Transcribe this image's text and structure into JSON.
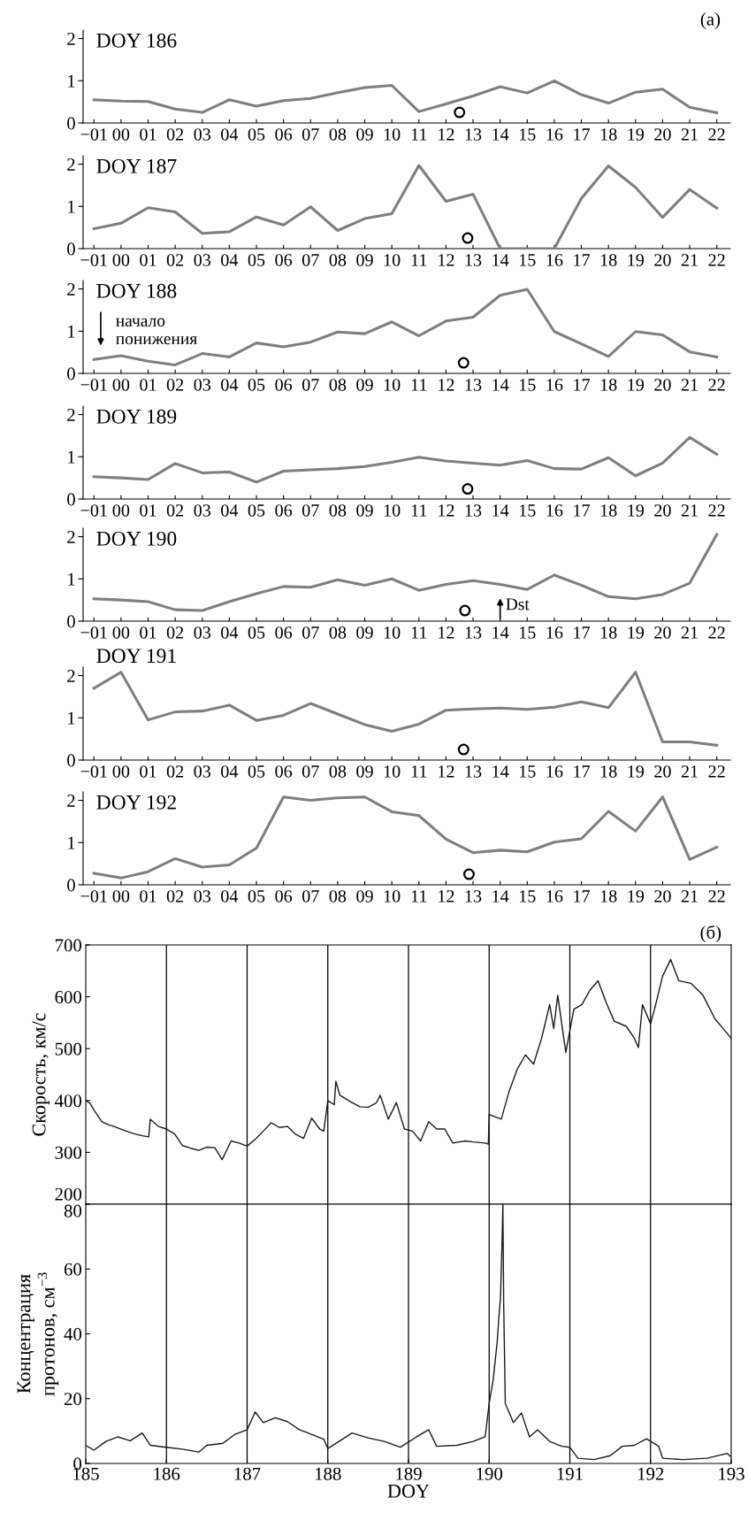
{
  "chart_data": [
    {
      "type": "line",
      "title": "DOY 186",
      "x": [
        -1,
        0,
        1,
        2,
        3,
        4,
        5,
        6,
        7,
        8,
        9,
        10,
        11,
        12,
        13,
        14,
        15,
        16,
        17,
        18,
        19,
        20,
        21,
        22
      ],
      "xlim": [
        -1.4,
        22.5
      ],
      "xticks": [
        {
          "value": -1,
          "label": "−01"
        },
        {
          "value": 0,
          "label": "00"
        },
        {
          "value": 1,
          "label": "01"
        },
        {
          "value": 2,
          "label": "02"
        },
        {
          "value": 3,
          "label": "03"
        },
        {
          "value": 4,
          "label": "04"
        },
        {
          "value": 5,
          "label": "05"
        },
        {
          "value": 6,
          "label": "06"
        },
        {
          "value": 7,
          "label": "07"
        },
        {
          "value": 8,
          "label": "08"
        },
        {
          "value": 9,
          "label": "09"
        },
        10,
        11,
        12,
        13,
        14,
        15,
        16,
        17,
        18,
        19,
        20,
        21,
        22
      ],
      "ylim": [
        0,
        2.2
      ],
      "yticks": [
        0,
        1,
        2
      ],
      "annotations": [
        "(a)"
      ],
      "series": [
        {
          "color": "#7f7f7f",
          "values": [
            0.55,
            0.52,
            0.51,
            0.33,
            0.25,
            0.55,
            0.4,
            0.53,
            0.58,
            0.72,
            0.84,
            0.89,
            0.27,
            0.45,
            0.64,
            0.86,
            0.71,
            1.0,
            0.67,
            0.47,
            0.73,
            0.8,
            0.37,
            0.24
          ]
        },
        {
          "type": "scatter",
          "x": [
            12.5
          ],
          "values": [
            0.25
          ],
          "color": "#000000",
          "marker": "circle"
        }
      ]
    },
    {
      "type": "line",
      "title": "DOY 187",
      "x": [
        -1,
        0,
        1,
        2,
        3,
        4,
        5,
        6,
        7,
        8,
        9,
        10,
        11,
        12,
        13,
        14,
        15,
        16,
        17,
        18,
        19,
        20,
        21,
        22
      ],
      "xlim": [
        -1.4,
        22.5
      ],
      "xticks": [
        {
          "value": -1,
          "label": "−01"
        },
        {
          "value": 0,
          "label": "00"
        },
        {
          "value": 1,
          "label": "01"
        },
        {
          "value": 2,
          "label": "02"
        },
        {
          "value": 3,
          "label": "03"
        },
        {
          "value": 4,
          "label": "04"
        },
        {
          "value": 5,
          "label": "05"
        },
        {
          "value": 6,
          "label": "06"
        },
        {
          "value": 7,
          "label": "07"
        },
        {
          "value": 8,
          "label": "08"
        },
        {
          "value": 9,
          "label": "09"
        },
        10,
        11,
        12,
        13,
        14,
        15,
        16,
        17,
        18,
        19,
        20,
        21,
        22
      ],
      "ylim": [
        0,
        2.2
      ],
      "yticks": [
        0,
        1,
        2
      ],
      "series": [
        {
          "color": "#7f7f7f",
          "values": [
            0.47,
            0.6,
            0.97,
            0.87,
            0.36,
            0.4,
            0.75,
            0.56,
            0.99,
            0.43,
            0.71,
            0.83,
            1.97,
            1.12,
            1.29,
            0,
            0,
            0,
            1.19,
            1.96,
            1.45,
            0.74,
            1.4,
            0.96
          ]
        },
        {
          "type": "scatter",
          "x": [
            12.8
          ],
          "values": [
            0.25
          ],
          "color": "#000000",
          "marker": "circle"
        }
      ]
    },
    {
      "type": "line",
      "title": "DOY 188",
      "x": [
        -1,
        0,
        1,
        2,
        3,
        4,
        5,
        6,
        7,
        8,
        9,
        10,
        11,
        12,
        13,
        14,
        15,
        16,
        17,
        18,
        19,
        20,
        21,
        22
      ],
      "xlim": [
        -1.4,
        22.5
      ],
      "xticks": [
        {
          "value": -1,
          "label": "−01"
        },
        {
          "value": 0,
          "label": "00"
        },
        {
          "value": 1,
          "label": "01"
        },
        {
          "value": 2,
          "label": "02"
        },
        {
          "value": 3,
          "label": "03"
        },
        {
          "value": 4,
          "label": "04"
        },
        {
          "value": 5,
          "label": "05"
        },
        {
          "value": 6,
          "label": "06"
        },
        {
          "value": 7,
          "label": "07"
        },
        {
          "value": 8,
          "label": "08"
        },
        {
          "value": 9,
          "label": "09"
        },
        10,
        11,
        12,
        13,
        14,
        15,
        16,
        17,
        18,
        19,
        20,
        21,
        22
      ],
      "ylim": [
        0,
        2.2
      ],
      "yticks": [
        0,
        1,
        2
      ],
      "annotations": [
        {
          "text": "начало\nпонижения",
          "x": -1,
          "y": 0.33
        }
      ],
      "series": [
        {
          "color": "#7f7f7f",
          "values": [
            0.33,
            0.42,
            0.29,
            0.2,
            0.47,
            0.39,
            0.72,
            0.63,
            0.74,
            0.98,
            0.94,
            1.22,
            0.89,
            1.24,
            1.33,
            1.85,
            1.99,
            0.99,
            0.7,
            0.4,
            0.99,
            0.91,
            0.51,
            0.39
          ]
        },
        {
          "type": "scatter",
          "x": [
            12.65
          ],
          "values": [
            0.25
          ],
          "color": "#000000",
          "marker": "circle"
        }
      ]
    },
    {
      "type": "line",
      "title": "DOY 189",
      "x": [
        -1,
        0,
        1,
        2,
        3,
        4,
        5,
        6,
        7,
        8,
        9,
        10,
        11,
        12,
        13,
        14,
        15,
        16,
        17,
        18,
        19,
        20,
        21,
        22
      ],
      "xlim": [
        -1.4,
        22.5
      ],
      "xticks": [
        {
          "value": -1,
          "label": "−01"
        },
        {
          "value": 0,
          "label": "00"
        },
        {
          "value": 1,
          "label": "01"
        },
        {
          "value": 2,
          "label": "02"
        },
        {
          "value": 3,
          "label": "03"
        },
        {
          "value": 4,
          "label": "04"
        },
        {
          "value": 5,
          "label": "05"
        },
        {
          "value": 6,
          "label": "06"
        },
        {
          "value": 7,
          "label": "07"
        },
        {
          "value": 8,
          "label": "08"
        },
        {
          "value": 9,
          "label": "09"
        },
        10,
        11,
        12,
        13,
        14,
        15,
        16,
        17,
        18,
        19,
        20,
        21,
        22
      ],
      "ylim": [
        0,
        2.2
      ],
      "yticks": [
        0,
        1,
        2
      ],
      "series": [
        {
          "color": "#7f7f7f",
          "values": [
            0.53,
            0.5,
            0.46,
            0.84,
            0.62,
            0.64,
            0.4,
            0.66,
            0.69,
            0.72,
            0.77,
            0.87,
            0.99,
            0.9,
            0.85,
            0.8,
            0.91,
            0.72,
            0.71,
            0.98,
            0.55,
            0.85,
            1.46,
            1.06
          ]
        },
        {
          "type": "scatter",
          "x": [
            12.8
          ],
          "values": [
            0.24
          ],
          "color": "#000000",
          "marker": "circle"
        }
      ]
    },
    {
      "type": "line",
      "title": "DOY 190",
      "x": [
        -1,
        0,
        1,
        2,
        3,
        4,
        5,
        6,
        7,
        8,
        9,
        10,
        11,
        12,
        13,
        14,
        15,
        16,
        17,
        18,
        19,
        20,
        21,
        22
      ],
      "xlim": [
        -1.4,
        22.5
      ],
      "xticks": [
        {
          "value": -1,
          "label": "−01"
        },
        {
          "value": 0,
          "label": "00"
        },
        {
          "value": 1,
          "label": "01"
        },
        {
          "value": 2,
          "label": "02"
        },
        {
          "value": 3,
          "label": "03"
        },
        {
          "value": 4,
          "label": "04"
        },
        {
          "value": 5,
          "label": "05"
        },
        {
          "value": 6,
          "label": "06"
        },
        {
          "value": 7,
          "label": "07"
        },
        {
          "value": 8,
          "label": "08"
        },
        {
          "value": 9,
          "label": "09"
        },
        10,
        11,
        12,
        13,
        14,
        15,
        16,
        17,
        18,
        19,
        20,
        21,
        22
      ],
      "ylim": [
        0,
        2.2
      ],
      "yticks": [
        0,
        1,
        2
      ],
      "annotations": [
        {
          "text": "Dst",
          "x": 14,
          "y": 0.87
        }
      ],
      "series": [
        {
          "color": "#7f7f7f",
          "values": [
            0.53,
            0.5,
            0.46,
            0.27,
            0.25,
            0.46,
            0.65,
            0.82,
            0.8,
            0.98,
            0.85,
            1.0,
            0.73,
            0.87,
            0.96,
            0.87,
            0.75,
            1.09,
            0.85,
            0.58,
            0.53,
            0.63,
            0.9,
            2.05
          ]
        },
        {
          "type": "scatter",
          "x": [
            12.7
          ],
          "values": [
            0.25
          ],
          "color": "#000000",
          "marker": "circle"
        }
      ]
    },
    {
      "type": "line",
      "title": "DOY 191",
      "x": [
        -1,
        0,
        1,
        2,
        3,
        4,
        5,
        6,
        7,
        8,
        9,
        10,
        11,
        12,
        13,
        14,
        15,
        16,
        17,
        18,
        19,
        20,
        21,
        22
      ],
      "xlim": [
        -1.4,
        22.5
      ],
      "xticks": [
        {
          "value": -1,
          "label": "−01"
        },
        {
          "value": 0,
          "label": "00"
        },
        {
          "value": 1,
          "label": "01"
        },
        {
          "value": 2,
          "label": "02"
        },
        {
          "value": 3,
          "label": "03"
        },
        {
          "value": 4,
          "label": "04"
        },
        {
          "value": 5,
          "label": "05"
        },
        {
          "value": 6,
          "label": "06"
        },
        {
          "value": 7,
          "label": "07"
        },
        {
          "value": 8,
          "label": "08"
        },
        {
          "value": 9,
          "label": "09"
        },
        10,
        11,
        12,
        13,
        14,
        15,
        16,
        17,
        18,
        19,
        20,
        21,
        22
      ],
      "ylim": [
        0,
        2.2
      ],
      "yticks": [
        0,
        1,
        2
      ],
      "series": [
        {
          "color": "#7f7f7f",
          "values": [
            1.7,
            2.08,
            0.95,
            1.14,
            1.16,
            1.3,
            0.94,
            1.06,
            1.34,
            1.09,
            0.84,
            0.68,
            0.85,
            1.18,
            1.21,
            1.23,
            1.2,
            1.25,
            1.38,
            1.24,
            2.08,
            0.43,
            0.43,
            0.35
          ]
        },
        {
          "type": "scatter",
          "x": [
            12.65
          ],
          "values": [
            0.25
          ],
          "color": "#000000",
          "marker": "circle"
        }
      ]
    },
    {
      "type": "line",
      "title": "DOY 192",
      "x": [
        -1,
        0,
        1,
        2,
        3,
        4,
        5,
        6,
        7,
        8,
        9,
        10,
        11,
        12,
        13,
        14,
        15,
        16,
        17,
        18,
        19,
        20,
        21,
        22
      ],
      "xlim": [
        -1.4,
        22.5
      ],
      "xticks": [
        {
          "value": -1,
          "label": "−01"
        },
        {
          "value": 0,
          "label": "00"
        },
        {
          "value": 1,
          "label": "01"
        },
        {
          "value": 2,
          "label": "02"
        },
        {
          "value": 3,
          "label": "03"
        },
        {
          "value": 4,
          "label": "04"
        },
        {
          "value": 5,
          "label": "05"
        },
        {
          "value": 6,
          "label": "06"
        },
        {
          "value": 7,
          "label": "07"
        },
        {
          "value": 8,
          "label": "08"
        },
        {
          "value": 9,
          "label": "09"
        },
        10,
        11,
        12,
        13,
        14,
        15,
        16,
        17,
        18,
        19,
        20,
        21,
        22
      ],
      "ylim": [
        0,
        2.2
      ],
      "yticks": [
        0,
        1,
        2
      ],
      "series": [
        {
          "color": "#7f7f7f",
          "values": [
            0.27,
            0.16,
            0.31,
            0.62,
            0.42,
            0.47,
            0.87,
            2.08,
            2.0,
            2.06,
            2.08,
            1.73,
            1.64,
            1.08,
            0.76,
            0.82,
            0.78,
            1.01,
            1.09,
            1.74,
            1.27,
            2.08,
            0.6,
            0.89
          ]
        },
        {
          "type": "scatter",
          "x": [
            12.85
          ],
          "values": [
            0.25
          ],
          "color": "#000000",
          "marker": "circle"
        }
      ]
    },
    {
      "type": "line",
      "ylabel": "Скорость, км/с",
      "xlim": [
        185,
        193
      ],
      "ylim": [
        200,
        700
      ],
      "yticks": [
        200,
        300,
        400,
        500,
        600,
        700
      ],
      "tick_labels": "y",
      "annotations": [
        "(б)"
      ],
      "ref_lines": [
        {
          "axis": "x",
          "value": 186,
          "color": "#000000"
        },
        {
          "axis": "x",
          "value": 187,
          "color": "#000000"
        },
        {
          "axis": "x",
          "value": 188,
          "color": "#000000"
        },
        {
          "axis": "x",
          "value": 189,
          "color": "#000000"
        },
        {
          "axis": "x",
          "value": 190,
          "color": "#000000"
        },
        {
          "axis": "x",
          "value": 191,
          "color": "#000000"
        },
        {
          "axis": "x",
          "value": 192,
          "color": "#000000"
        }
      ],
      "series": [
        {
          "color": "#1a1a1a",
          "x": [
            185.0,
            185.05,
            185.1,
            185.2,
            185.3,
            185.35,
            185.5,
            185.6,
            185.7,
            185.78,
            185.8,
            185.9,
            186.0,
            186.1,
            186.2,
            186.3,
            186.4,
            186.5,
            186.6,
            186.69,
            186.75,
            186.8,
            186.9,
            187.0,
            187.1,
            187.2,
            187.3,
            187.4,
            187.5,
            187.6,
            187.7,
            187.8,
            187.9,
            187.95,
            188.0,
            188.08,
            188.1,
            188.15,
            188.3,
            188.4,
            188.5,
            188.6,
            188.65,
            188.75,
            188.85,
            188.95,
            189.05,
            189.15,
            189.25,
            189.35,
            189.45,
            189.55,
            189.7,
            189.8,
            189.95,
            189.99,
            190.0,
            190.15,
            190.25,
            190.35,
            190.45,
            190.55,
            190.65,
            190.75,
            190.8,
            190.85,
            190.95,
            191.05,
            191.15,
            191.25,
            191.35,
            191.45,
            191.55,
            191.7,
            191.8,
            191.85,
            191.9,
            192.0,
            192.05,
            192.15,
            192.25,
            192.35,
            192.5,
            192.65,
            192.8,
            192.9,
            193.0
          ],
          "values": [
            400,
            395,
            382,
            359,
            352,
            350,
            341,
            336,
            332,
            330,
            364,
            350,
            345,
            336,
            313,
            308,
            304,
            310,
            309,
            286,
            305,
            322,
            318,
            312,
            325,
            341,
            357,
            348,
            350,
            335,
            327,
            366,
            345,
            341,
            400,
            392,
            437,
            410,
            396,
            388,
            387,
            395,
            410,
            364,
            396,
            345,
            341,
            322,
            359,
            345,
            345,
            318,
            322,
            320,
            318,
            316,
            373,
            364,
            419,
            461,
            488,
            470,
            520,
            585,
            539,
            603,
            493,
            576,
            585,
            613,
            631,
            589,
            553,
            543,
            520,
            502,
            585,
            548,
            576,
            640,
            672,
            631,
            626,
            603,
            557,
            539,
            520
          ]
        }
      ]
    },
    {
      "type": "line",
      "ylabel": "Концентрация\nпротонов, см$^{−3}$",
      "xlabel": "DOY",
      "xlim": [
        185,
        193
      ],
      "xticks": [
        185,
        186,
        187,
        188,
        189,
        190,
        191,
        192,
        193
      ],
      "ylim": [
        0,
        80
      ],
      "yticks": [
        0,
        20,
        40,
        60,
        80
      ],
      "ref_lines": [
        {
          "axis": "x",
          "value": 186,
          "color": "#000000"
        },
        {
          "axis": "x",
          "value": 187,
          "color": "#000000"
        },
        {
          "axis": "x",
          "value": 188,
          "color": "#000000"
        },
        {
          "axis": "x",
          "value": 189,
          "color": "#000000"
        },
        {
          "axis": "x",
          "value": 190,
          "color": "#000000"
        },
        {
          "axis": "x",
          "value": 191,
          "color": "#000000"
        },
        {
          "axis": "x",
          "value": 192,
          "color": "#000000"
        }
      ],
      "series": [
        {
          "color": "#1a1a1a",
          "x": [
            185.0,
            185.1,
            185.25,
            185.4,
            185.55,
            185.7,
            185.8,
            186.0,
            186.2,
            186.4,
            186.5,
            186.7,
            186.85,
            187.0,
            187.1,
            187.2,
            187.35,
            187.5,
            187.65,
            187.8,
            187.95,
            188.0,
            188.15,
            188.3,
            188.5,
            188.7,
            188.9,
            189.1,
            189.25,
            189.35,
            189.6,
            189.8,
            189.95,
            190.0,
            190.05,
            190.1,
            190.12,
            190.14,
            190.16,
            190.17,
            190.18,
            190.2,
            190.3,
            190.4,
            190.5,
            190.6,
            190.75,
            190.9,
            191.0,
            191.1,
            191.3,
            191.5,
            191.65,
            191.8,
            191.95,
            192.1,
            192.15,
            192.4,
            192.7,
            192.95,
            193.0
          ],
          "values": [
            5.6,
            4.1,
            6.8,
            8.2,
            7,
            9.4,
            5.6,
            5,
            4.4,
            3.5,
            5.6,
            6.2,
            9,
            10.4,
            15.9,
            12.6,
            14.1,
            12.9,
            10.4,
            9,
            7.5,
            4.6,
            7,
            9.4,
            7.9,
            6.8,
            5,
            8.2,
            10.4,
            5.3,
            5.6,
            6.8,
            8.2,
            18.5,
            25.9,
            37.6,
            45,
            50.9,
            68.5,
            80,
            49.4,
            18.5,
            12.6,
            15.6,
            8.2,
            10.4,
            6.8,
            5.3,
            5,
            1.6,
            1.2,
            2.4,
            5.3,
            5.6,
            7.6,
            5.3,
            1.6,
            1.2,
            1.6,
            3.1,
            2
          ]
        }
      ]
    }
  ]
}
